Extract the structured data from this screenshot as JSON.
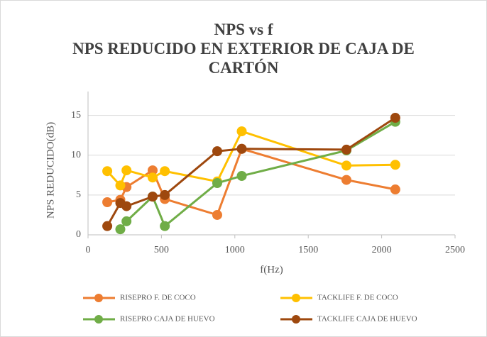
{
  "chart_data": {
    "type": "line",
    "title": "NPS vs f",
    "subtitle": "NPS REDUCIDO EN EXTERIOR DE CAJA DE CARTÓN",
    "x_label": "f(Hz)",
    "y_label": "NPS REDUCIDO(dB)",
    "x": [
      131,
      220,
      262,
      440,
      523,
      880,
      1047,
      1760,
      2093
    ],
    "series": [
      {
        "name": "RISEPRO F. DE COCO",
        "color": "#ed7d31",
        "values": [
          4.1,
          4.4,
          6.0,
          8.1,
          4.5,
          2.5,
          10.8,
          6.9,
          5.7
        ]
      },
      {
        "name": "TACKLIFE F. DE COCO",
        "color": "#ffc000",
        "values": [
          8.0,
          6.2,
          8.1,
          7.2,
          8.0,
          6.7,
          13.0,
          8.7,
          8.8
        ]
      },
      {
        "name": "RISEPRO CAJA DE HUEVO",
        "color": "#70ad47",
        "values": [
          null,
          0.7,
          1.7,
          4.8,
          1.1,
          6.5,
          7.4,
          10.6,
          14.2
        ]
      },
      {
        "name": "TACKLIFE CAJA DE HUEVO",
        "color": "#9e480e",
        "values": [
          1.1,
          4.0,
          3.6,
          4.8,
          5.0,
          10.5,
          10.8,
          10.7,
          14.7
        ]
      }
    ],
    "xlim": [
      0,
      2500
    ],
    "xticks": [
      0,
      500,
      1000,
      1500,
      2000,
      2500
    ],
    "ylim": [
      0,
      18
    ],
    "yticks": [
      0,
      5,
      10,
      15
    ],
    "grid": true,
    "legend": "bottom"
  }
}
